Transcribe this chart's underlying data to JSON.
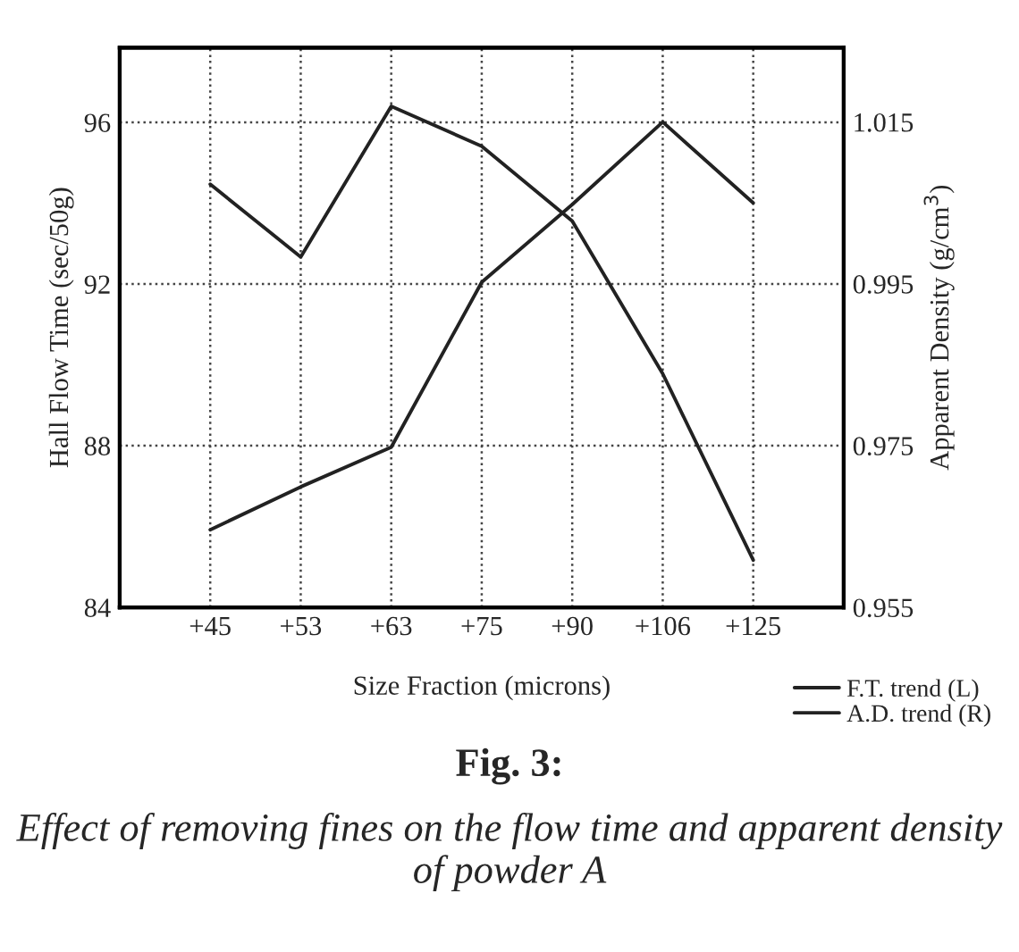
{
  "chart_data": {
    "type": "line",
    "categories": [
      "+45",
      "+53",
      "+63",
      "+75",
      "+90",
      "+106",
      "+125"
    ],
    "xlabel": "Size Fraction (microns)",
    "ylabel": "Hall Flow Time (sec/50g)",
    "y2label": "Apparent Density (g/cm$^{3}$)",
    "series": [
      {
        "name": "F.T. trend (L)",
        "color": "#222222",
        "values": [
          94.47,
          92.67,
          96.4,
          95.41,
          93.56,
          89.78,
          85.17
        ]
      },
      {
        "name": "A.D. trend (R)",
        "color": "#222222",
        "axis": "y2",
        "values": [
          0.9646,
          0.9699,
          0.9748,
          0.9952,
          1.0048,
          1.015,
          1.005
        ]
      }
    ],
    "ylim": [
      84,
      97.85
    ],
    "yticks": [
      84,
      88,
      92,
      96
    ],
    "y2lim": [
      0.955,
      1.0242
    ],
    "y2ticks": [
      0.955,
      0.975,
      0.995,
      1.015
    ],
    "grid": true,
    "legend": "bottom right",
    "marker": "none",
    "line_style": "solid",
    "annotations": [
      "Fig. 3:",
      "Effect of removing fines on the flow time and apparent density of powder A"
    ]
  }
}
